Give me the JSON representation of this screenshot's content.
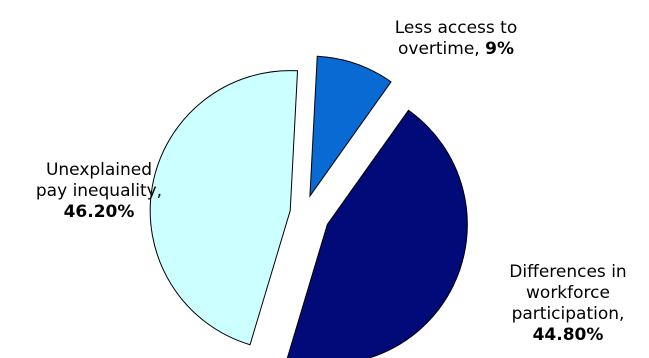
{
  "chart_data": {
    "type": "pie",
    "slices": [
      {
        "label_lines": [
          "Less access to",
          "overtime,"
        ],
        "value_text": "9%",
        "value": 9.0,
        "color": "#0a6ad4"
      },
      {
        "label_lines": [
          "Differences in",
          "workforce",
          "participation,"
        ],
        "value_text": "44.80%",
        "value": 44.8,
        "color": "#000a78"
      },
      {
        "label_lines": [
          "Unexplained",
          "pay inequality,"
        ],
        "value_text": "46.20%",
        "value": 46.2,
        "color": "#ccffff"
      }
    ],
    "exploded": true,
    "legend": "none"
  }
}
